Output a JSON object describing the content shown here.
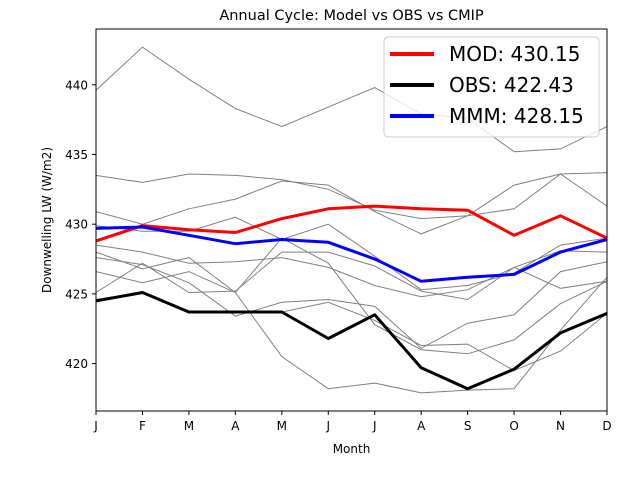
{
  "chart_data": {
    "type": "line",
    "title": "Annual Cycle: Model vs OBS vs CMIP",
    "xlabel": "Month",
    "ylabel": "Downwelling LW (W/m2)",
    "categories": [
      "J",
      "F",
      "M",
      "A",
      "M",
      "J",
      "J",
      "A",
      "S",
      "O",
      "N",
      "D"
    ],
    "ylim": [
      416.6,
      444.0
    ],
    "yticks": [
      420,
      425,
      430,
      435,
      440
    ],
    "grid": false,
    "legend_position": "upper-right",
    "highlight_series": [
      {
        "name": "MOD: 430.15",
        "color": "#ff0000",
        "values": [
          428.8,
          429.9,
          429.6,
          429.4,
          430.4,
          431.1,
          431.3,
          431.1,
          431.0,
          429.2,
          430.6,
          429.0
        ]
      },
      {
        "name": "OBS: 422.43",
        "color": "#000000",
        "values": [
          424.5,
          425.1,
          423.7,
          423.7,
          423.7,
          421.8,
          423.5,
          419.7,
          418.2,
          419.6,
          422.2,
          423.6
        ]
      },
      {
        "name": "MMM: 428.15",
        "color": "#0000ff",
        "values": [
          429.7,
          429.8,
          429.2,
          428.6,
          428.9,
          428.7,
          427.5,
          425.9,
          426.2,
          426.4,
          428.0,
          428.9
        ]
      }
    ],
    "background_series_color": "#808080",
    "background_series": [
      {
        "values": [
          439.6,
          442.7,
          440.4,
          438.3,
          437.0,
          438.4,
          439.8,
          437.9,
          437.6,
          435.2,
          435.4,
          437.0
        ]
      },
      {
        "values": [
          433.5,
          433.0,
          433.6,
          433.5,
          433.2,
          432.5,
          431.0,
          430.4,
          430.6,
          432.8,
          433.6,
          433.7
        ]
      },
      {
        "values": [
          430.9,
          430.0,
          431.1,
          431.8,
          433.1,
          432.8,
          430.9,
          429.3,
          430.6,
          431.1,
          433.6,
          431.3
        ]
      },
      {
        "values": [
          429.9,
          429.5,
          429.5,
          430.5,
          428.9,
          430.0,
          427.7,
          425.3,
          425.6,
          426.5,
          428.5,
          429.0
        ]
      },
      {
        "values": [
          428.5,
          428.0,
          427.2,
          427.3,
          427.6,
          426.9,
          425.6,
          424.8,
          425.3,
          426.9,
          428.1,
          428.0
        ]
      },
      {
        "values": [
          428.0,
          426.8,
          427.6,
          425.1,
          429.0,
          427.2,
          422.8,
          421.0,
          420.7,
          421.7,
          424.3,
          425.9
        ]
      },
      {
        "values": [
          427.6,
          427.1,
          425.8,
          423.4,
          424.4,
          424.6,
          424.1,
          421.1,
          422.9,
          423.5,
          426.6,
          427.3
        ]
      },
      {
        "values": [
          426.6,
          425.8,
          426.6,
          425.1,
          420.5,
          418.2,
          418.6,
          417.9,
          418.1,
          418.2,
          422.4,
          426.2
        ]
      },
      {
        "values": [
          425.1,
          427.2,
          425.1,
          425.2,
          428.0,
          428.0,
          427.0,
          425.2,
          424.6,
          426.9,
          425.4,
          425.9
        ]
      },
      {
        "values": [
          424.6,
          425.1,
          423.7,
          423.7,
          423.7,
          424.4,
          423.1,
          421.3,
          421.4,
          419.5,
          420.9,
          423.6
        ]
      }
    ]
  }
}
